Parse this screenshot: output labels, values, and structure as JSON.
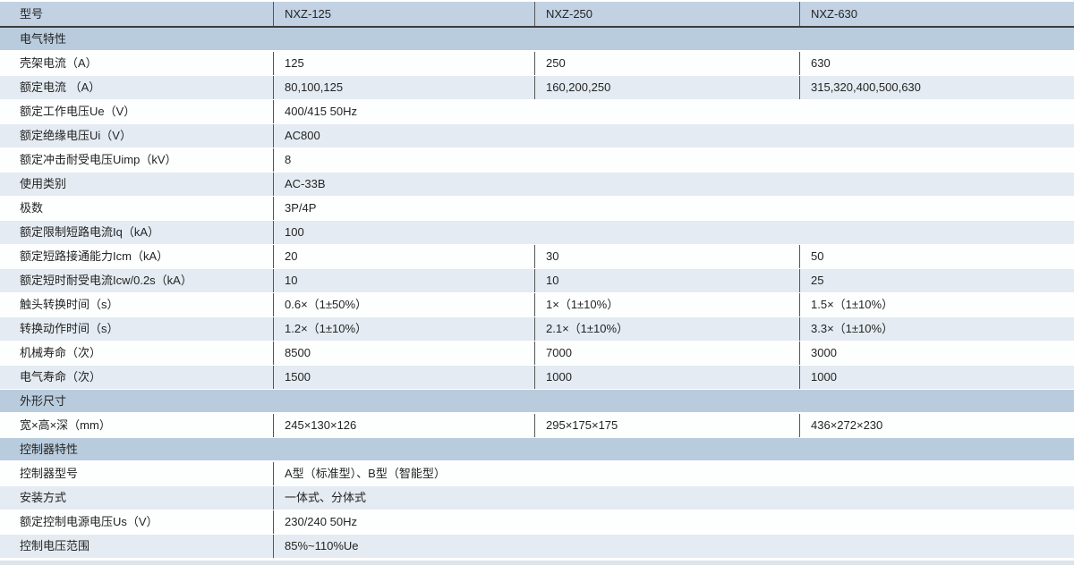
{
  "colors": {
    "band": "#b9ccde",
    "header": "#c2d2e3",
    "row_light": "#e4ebf2",
    "divider": "#555555",
    "header_line": "#3c3c3c",
    "bottom_stripe": "#dde3ea"
  },
  "table": {
    "header": {
      "label": "型号",
      "models": [
        "NXZ-125",
        "NXZ-250",
        "NXZ-630"
      ]
    },
    "rows": [
      {
        "type": "section",
        "label": "电气特性"
      },
      {
        "type": "row",
        "label": "壳架电流（A）",
        "values": [
          "125",
          "250",
          "630"
        ]
      },
      {
        "type": "row",
        "label": "额定电流 （A）",
        "values": [
          "80,100,125",
          "160,200,250",
          "315,320,400,500,630"
        ]
      },
      {
        "type": "row",
        "label": "额定工作电压Ue（V）",
        "values": [
          "400/415 50Hz"
        ]
      },
      {
        "type": "row",
        "label": "额定绝缘电压Ui（V）",
        "values": [
          "AC800"
        ]
      },
      {
        "type": "row",
        "label": "额定冲击耐受电压Uimp（kV）",
        "values": [
          "8"
        ]
      },
      {
        "type": "row",
        "label": "使用类别",
        "values": [
          "AC-33B"
        ]
      },
      {
        "type": "row",
        "label": "极数",
        "values": [
          "3P/4P"
        ]
      },
      {
        "type": "row",
        "label": "额定限制短路电流Iq（kA）",
        "values": [
          "100"
        ]
      },
      {
        "type": "row",
        "label": "额定短路接通能力Icm（kA）",
        "values": [
          "20",
          "30",
          "50"
        ]
      },
      {
        "type": "row",
        "label": "额定短时耐受电流Icw/0.2s（kA）",
        "values": [
          "10",
          "10",
          "25"
        ]
      },
      {
        "type": "row",
        "label": "触头转换时间（s）",
        "values": [
          "0.6×（1±50%）",
          "1×（1±10%）",
          "1.5×（1±10%）"
        ]
      },
      {
        "type": "row",
        "label": "转换动作时间（s）",
        "values": [
          "1.2×（1±10%）",
          "2.1×（1±10%）",
          "3.3×（1±10%）"
        ]
      },
      {
        "type": "row",
        "label": "机械寿命（次）",
        "values": [
          "8500",
          "7000",
          "3000"
        ]
      },
      {
        "type": "row",
        "label": "电气寿命（次）",
        "values": [
          "1500",
          "1000",
          "1000"
        ]
      },
      {
        "type": "section",
        "label": "外形尺寸"
      },
      {
        "type": "row",
        "label": "宽×高×深（mm）",
        "values": [
          "245×130×126",
          "295×175×175",
          "436×272×230"
        ]
      },
      {
        "type": "section",
        "label": "控制器特性"
      },
      {
        "type": "row",
        "label": "控制器型号",
        "values": [
          "A型（标准型）、B型（智能型）"
        ]
      },
      {
        "type": "row",
        "label": "安装方式",
        "values": [
          "一体式、分体式"
        ]
      },
      {
        "type": "row",
        "label": "额定控制电源电压Us（V）",
        "values": [
          "230/240 50Hz"
        ]
      },
      {
        "type": "row",
        "label": "控制电压范围",
        "values": [
          "85%~110%Ue"
        ]
      }
    ]
  }
}
